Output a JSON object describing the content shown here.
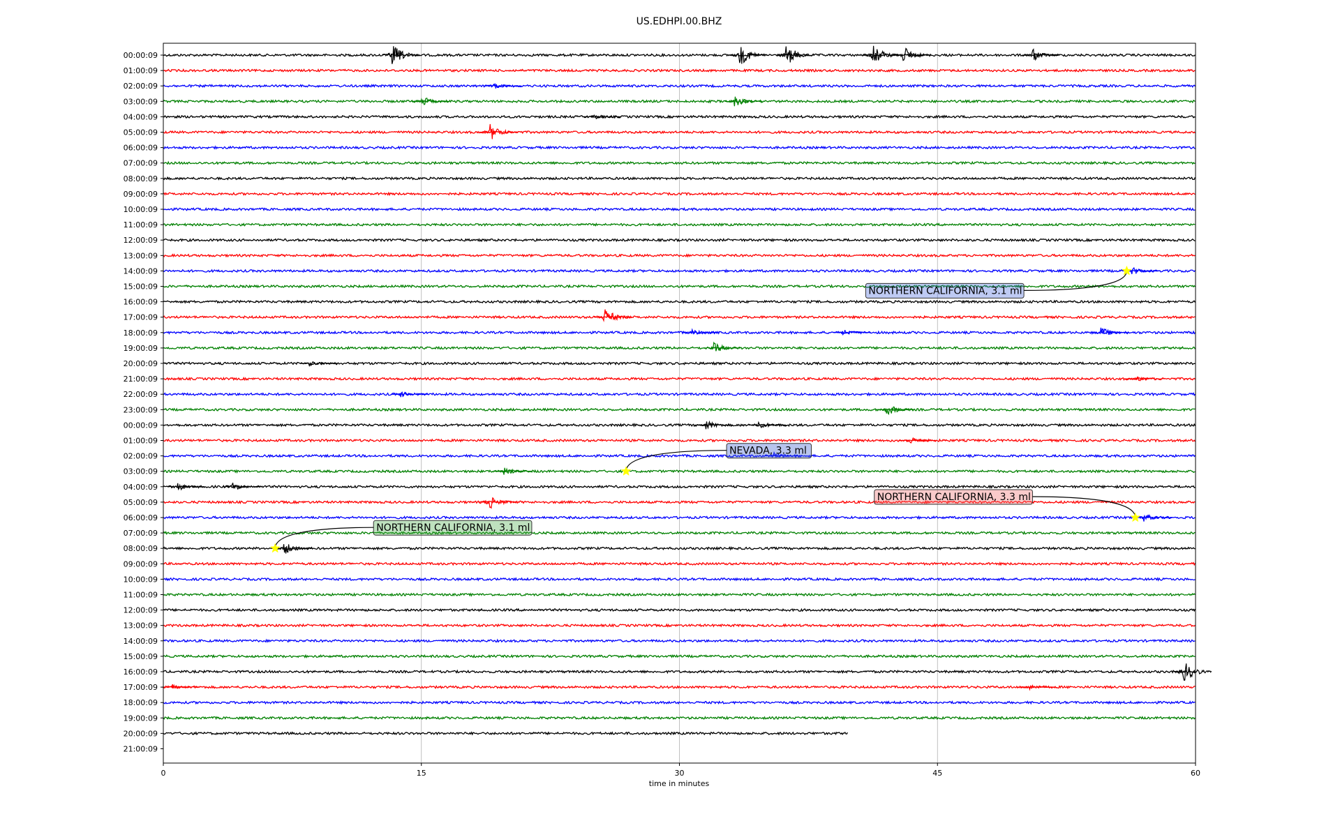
{
  "chart_data": {
    "type": "line",
    "title": "US.EDHPI.00.BHZ",
    "xlabel": "time in minutes",
    "ylabel": "",
    "xlim": [
      0,
      60
    ],
    "x_ticks": [
      "0",
      "15",
      "30",
      "45",
      "60"
    ],
    "grid": "vertical gridlines at 15, 30, 45",
    "trace_colors": [
      "#000000",
      "#ff0000",
      "#0000ff",
      "#008000"
    ],
    "rows": [
      {
        "label": "00:00:09",
        "color": "#000000",
        "end_minute": 60
      },
      {
        "label": "01:00:09",
        "color": "#ff0000",
        "end_minute": 60
      },
      {
        "label": "02:00:09",
        "color": "#0000ff",
        "end_minute": 60
      },
      {
        "label": "03:00:09",
        "color": "#008000",
        "end_minute": 60
      },
      {
        "label": "04:00:09",
        "color": "#000000",
        "end_minute": 60
      },
      {
        "label": "05:00:09",
        "color": "#ff0000",
        "end_minute": 60
      },
      {
        "label": "06:00:09",
        "color": "#0000ff",
        "end_minute": 60
      },
      {
        "label": "07:00:09",
        "color": "#008000",
        "end_minute": 60
      },
      {
        "label": "08:00:09",
        "color": "#000000",
        "end_minute": 60
      },
      {
        "label": "09:00:09",
        "color": "#ff0000",
        "end_minute": 60
      },
      {
        "label": "10:00:09",
        "color": "#0000ff",
        "end_minute": 60
      },
      {
        "label": "11:00:09",
        "color": "#008000",
        "end_minute": 60
      },
      {
        "label": "12:00:09",
        "color": "#000000",
        "end_minute": 60
      },
      {
        "label": "13:00:09",
        "color": "#ff0000",
        "end_minute": 60
      },
      {
        "label": "14:00:09",
        "color": "#0000ff",
        "end_minute": 60
      },
      {
        "label": "15:00:09",
        "color": "#008000",
        "end_minute": 60
      },
      {
        "label": "16:00:09",
        "color": "#000000",
        "end_minute": 60
      },
      {
        "label": "17:00:09",
        "color": "#ff0000",
        "end_minute": 60
      },
      {
        "label": "18:00:09",
        "color": "#0000ff",
        "end_minute": 60
      },
      {
        "label": "19:00:09",
        "color": "#008000",
        "end_minute": 60
      },
      {
        "label": "20:00:09",
        "color": "#000000",
        "end_minute": 60
      },
      {
        "label": "21:00:09",
        "color": "#ff0000",
        "end_minute": 60
      },
      {
        "label": "22:00:09",
        "color": "#0000ff",
        "end_minute": 60
      },
      {
        "label": "23:00:09",
        "color": "#008000",
        "end_minute": 60
      },
      {
        "label": "00:00:09",
        "color": "#000000",
        "end_minute": 60
      },
      {
        "label": "01:00:09",
        "color": "#ff0000",
        "end_minute": 60
      },
      {
        "label": "02:00:09",
        "color": "#0000ff",
        "end_minute": 60
      },
      {
        "label": "03:00:09",
        "color": "#008000",
        "end_minute": 60
      },
      {
        "label": "04:00:09",
        "color": "#000000",
        "end_minute": 60
      },
      {
        "label": "05:00:09",
        "color": "#ff0000",
        "end_minute": 60
      },
      {
        "label": "06:00:09",
        "color": "#0000ff",
        "end_minute": 60
      },
      {
        "label": "07:00:09",
        "color": "#008000",
        "end_minute": 60
      },
      {
        "label": "08:00:09",
        "color": "#000000",
        "end_minute": 60
      },
      {
        "label": "09:00:09",
        "color": "#ff0000",
        "end_minute": 60
      },
      {
        "label": "10:00:09",
        "color": "#0000ff",
        "end_minute": 60
      },
      {
        "label": "11:00:09",
        "color": "#008000",
        "end_minute": 60
      },
      {
        "label": "12:00:09",
        "color": "#000000",
        "end_minute": 60
      },
      {
        "label": "13:00:09",
        "color": "#ff0000",
        "end_minute": 60
      },
      {
        "label": "14:00:09",
        "color": "#0000ff",
        "end_minute": 60
      },
      {
        "label": "15:00:09",
        "color": "#008000",
        "end_minute": 60
      },
      {
        "label": "16:00:09",
        "color": "#000000",
        "end_minute": 60
      },
      {
        "label": "17:00:09",
        "color": "#ff0000",
        "end_minute": 60
      },
      {
        "label": "18:00:09",
        "color": "#0000ff",
        "end_minute": 60
      },
      {
        "label": "19:00:09",
        "color": "#008000",
        "end_minute": 60
      },
      {
        "label": "20:00:09",
        "color": "#000000",
        "end_minute": 39.8
      },
      {
        "label": "21:00:09",
        "color": "#ff0000",
        "end_minute": 0
      }
    ],
    "bursts": [
      {
        "row": 0,
        "minute": 13.3,
        "amp": 1.0
      },
      {
        "row": 0,
        "minute": 33.5,
        "amp": 1.0
      },
      {
        "row": 0,
        "minute": 36.2,
        "amp": 1.0
      },
      {
        "row": 0,
        "minute": 41.2,
        "amp": 1.0
      },
      {
        "row": 0,
        "minute": 43.0,
        "amp": 0.8
      },
      {
        "row": 0,
        "minute": 50.5,
        "amp": 0.6
      },
      {
        "row": 2,
        "minute": 19.2,
        "amp": 0.3
      },
      {
        "row": 3,
        "minute": 15.0,
        "amp": 0.5
      },
      {
        "row": 3,
        "minute": 33.2,
        "amp": 0.5
      },
      {
        "row": 4,
        "minute": 25.0,
        "amp": 0.3
      },
      {
        "row": 5,
        "minute": 19.0,
        "amp": 0.8
      },
      {
        "row": 14,
        "minute": 56.3,
        "amp": 0.4
      },
      {
        "row": 17,
        "minute": 25.6,
        "amp": 0.9
      },
      {
        "row": 18,
        "minute": 30.7,
        "amp": 0.3
      },
      {
        "row": 18,
        "minute": 39.5,
        "amp": 0.3
      },
      {
        "row": 18,
        "minute": 54.5,
        "amp": 0.5
      },
      {
        "row": 19,
        "minute": 32.0,
        "amp": 0.5
      },
      {
        "row": 20,
        "minute": 8.5,
        "amp": 0.3
      },
      {
        "row": 21,
        "minute": 56.5,
        "amp": 0.3
      },
      {
        "row": 22,
        "minute": 13.8,
        "amp": 0.3
      },
      {
        "row": 23,
        "minute": 42.0,
        "amp": 0.6
      },
      {
        "row": 24,
        "minute": 31.5,
        "amp": 0.5
      },
      {
        "row": 24,
        "minute": 34.6,
        "amp": 0.4
      },
      {
        "row": 25,
        "minute": 43.3,
        "amp": 0.4
      },
      {
        "row": 26,
        "minute": 35.5,
        "amp": 0.3
      },
      {
        "row": 27,
        "minute": 19.8,
        "amp": 0.4
      },
      {
        "row": 28,
        "minute": 0.8,
        "amp": 0.4
      },
      {
        "row": 28,
        "minute": 4.0,
        "amp": 0.4
      },
      {
        "row": 29,
        "minute": 18.9,
        "amp": 0.8
      },
      {
        "row": 30,
        "minute": 57.0,
        "amp": 0.4
      },
      {
        "row": 32,
        "minute": 7.0,
        "amp": 0.6
      },
      {
        "row": 40,
        "minute": 59.3,
        "amp": 1.0
      },
      {
        "row": 41,
        "minute": 0.5,
        "amp": 0.3
      },
      {
        "row": 41,
        "minute": 50.2,
        "amp": 0.3
      }
    ],
    "annotations": [
      {
        "text": "NORTHERN CALIFORNIA, 3.1 ml",
        "row": 14,
        "minute": 56.0,
        "box_color": "#4466dd"
      },
      {
        "text": "NEVADA, 3.3 ml",
        "row": 27,
        "minute": 26.9,
        "box_color": "#3355cc"
      },
      {
        "text": "NORTHERN CALIFORNIA, 3.3 ml",
        "row": 30,
        "minute": 56.5,
        "box_color": "#ee6666"
      },
      {
        "text": "NORTHERN CALIFORNIA, 3.1 ml",
        "row": 32,
        "minute": 6.5,
        "box_color": "#44aa44"
      }
    ]
  }
}
